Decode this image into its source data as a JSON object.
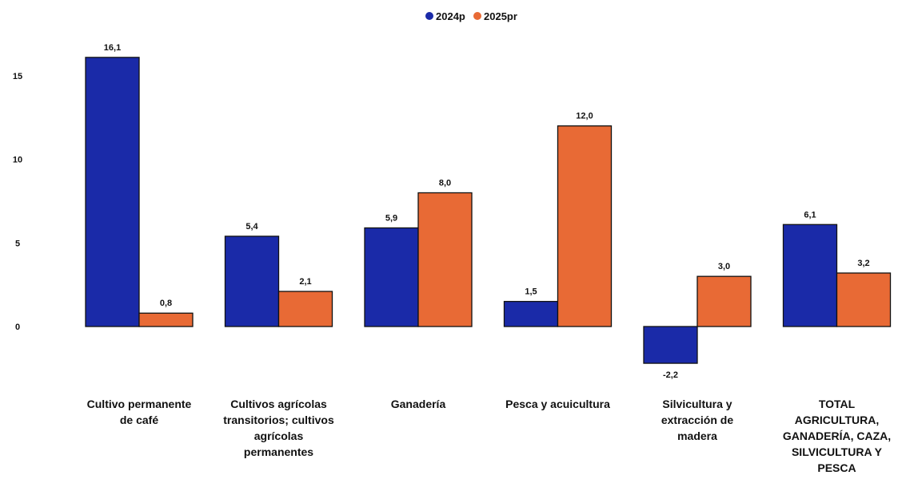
{
  "chart_data": {
    "type": "bar",
    "title": "",
    "xlabel": "",
    "ylabel": "",
    "categories": [
      [
        "Cultivo permanente",
        "de café"
      ],
      [
        "Cultivos agrícolas",
        "transitorios; cultivos",
        "agrícolas",
        "permanentes"
      ],
      [
        "Ganadería"
      ],
      [
        "Pesca y acuicultura"
      ],
      [
        "Silvicultura y",
        "extracción de",
        "madera"
      ],
      [
        "TOTAL",
        "AGRICULTURA,",
        "GANADERÍA, CAZA,",
        "SILVICULTURA Y",
        "PESCA"
      ]
    ],
    "series": [
      {
        "name": "2024p",
        "color": "#1a2aa8",
        "values": [
          16.1,
          5.4,
          5.9,
          1.5,
          -2.2,
          6.1
        ],
        "labels": [
          "16,1",
          "5,4",
          "5,9",
          "1,5",
          "-2,2",
          "6,1"
        ]
      },
      {
        "name": "2025pr",
        "color": "#e86a35",
        "values": [
          0.8,
          2.1,
          8.0,
          12.0,
          3.0,
          3.2
        ],
        "labels": [
          "0,8",
          "2,1",
          "8,0",
          "12,0",
          "3,0",
          "3,2"
        ]
      }
    ],
    "ylim": [
      -3.5,
      17.5
    ],
    "yticks": [
      0,
      5,
      10,
      15
    ],
    "ytick_labels": [
      "0",
      "5",
      "10",
      "15"
    ],
    "legend_position": "top-center",
    "grid": false
  }
}
